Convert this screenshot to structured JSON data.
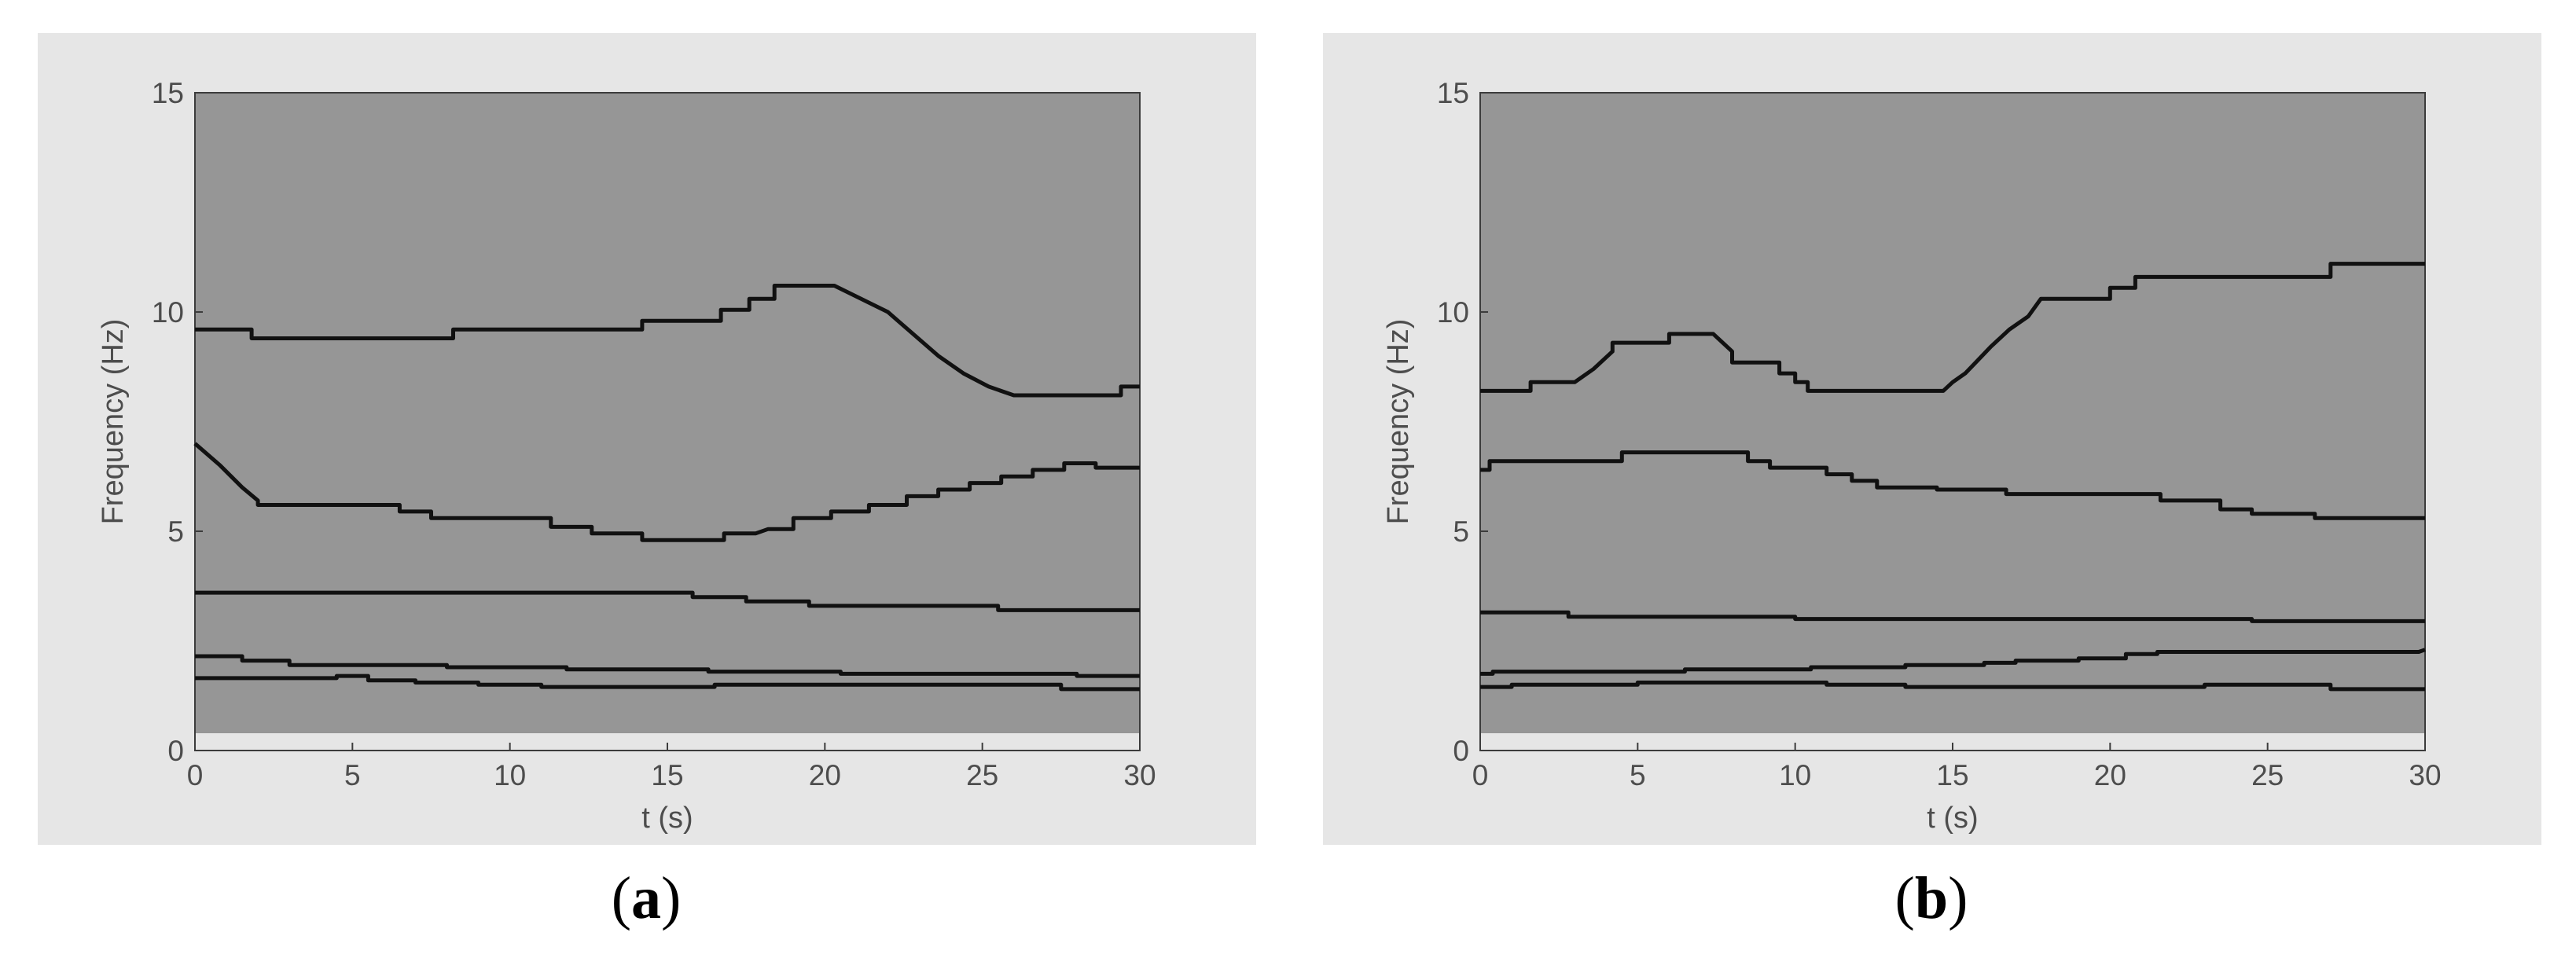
{
  "chart_data": [
    {
      "type": "line",
      "panel_label": "a",
      "xlabel": "t (s)",
      "ylabel": "Frequency (Hz)",
      "xlim": [
        0,
        30
      ],
      "ylim": [
        0,
        15
      ],
      "xticks": [
        0,
        5,
        10,
        15,
        20,
        25,
        30
      ],
      "yticks": [
        0,
        5,
        10,
        15
      ],
      "plot_background": "#969696",
      "line_color": "#111111",
      "series": [
        {
          "x": [
            0,
            1.8,
            1.8,
            8.2,
            8.2,
            14.2,
            14.2,
            16.7,
            16.7,
            17.6,
            17.6,
            18.4,
            18.4,
            20.3,
            20.3,
            22.0,
            22.8,
            23.6,
            24.4,
            25.2,
            26.0,
            26.8,
            26.8,
            29.4,
            29.4,
            30
          ],
          "y": [
            9.6,
            9.6,
            9.4,
            9.4,
            9.6,
            9.6,
            9.8,
            9.8,
            10.05,
            10.05,
            10.3,
            10.3,
            10.6,
            10.6,
            10.6,
            10.0,
            9.5,
            9.0,
            8.6,
            8.3,
            8.1,
            8.1,
            8.1,
            8.1,
            8.3,
            8.3
          ]
        },
        {
          "x": [
            0,
            0.8,
            1.5,
            2.0,
            2.0,
            6.5,
            6.5,
            7.5,
            7.5,
            11.3,
            11.3,
            12.6,
            12.6,
            14.2,
            14.2,
            16.8,
            16.8,
            17.8,
            18.2,
            19.0,
            19.0,
            20.2,
            20.2,
            21.4,
            21.4,
            22.6,
            22.6,
            23.6,
            23.6,
            24.6,
            24.6,
            25.6,
            25.6,
            26.6,
            26.6,
            27.6,
            27.6,
            28.6,
            28.6,
            30
          ],
          "y": [
            7.0,
            6.5,
            6.0,
            5.7,
            5.6,
            5.6,
            5.45,
            5.45,
            5.3,
            5.3,
            5.1,
            5.1,
            4.95,
            4.95,
            4.8,
            4.8,
            4.95,
            4.95,
            5.05,
            5.05,
            5.3,
            5.3,
            5.45,
            5.45,
            5.6,
            5.6,
            5.8,
            5.8,
            5.95,
            5.95,
            6.1,
            6.1,
            6.25,
            6.25,
            6.4,
            6.4,
            6.55,
            6.55,
            6.45,
            6.45
          ]
        },
        {
          "x": [
            0,
            15.8,
            15.8,
            17.5,
            17.5,
            19.5,
            19.5,
            25.5,
            25.5,
            30
          ],
          "y": [
            3.6,
            3.6,
            3.5,
            3.5,
            3.4,
            3.4,
            3.3,
            3.3,
            3.2,
            3.2
          ]
        },
        {
          "x": [
            0,
            1.5,
            1.5,
            3.0,
            3.0,
            8.0,
            8.0,
            11.8,
            11.8,
            16.3,
            16.3,
            20.5,
            20.5,
            28.0,
            28.0,
            30
          ],
          "y": [
            2.15,
            2.15,
            2.05,
            2.05,
            1.95,
            1.95,
            1.9,
            1.9,
            1.85,
            1.85,
            1.8,
            1.8,
            1.75,
            1.75,
            1.7,
            1.7
          ]
        },
        {
          "x": [
            0,
            4.5,
            4.5,
            5.5,
            5.5,
            7.0,
            7.0,
            9.0,
            9.0,
            11.0,
            11.0,
            16.5,
            16.5,
            27.5,
            27.5,
            30
          ],
          "y": [
            1.65,
            1.65,
            1.7,
            1.7,
            1.6,
            1.6,
            1.55,
            1.55,
            1.5,
            1.5,
            1.45,
            1.45,
            1.5,
            1.5,
            1.4,
            1.4
          ]
        }
      ]
    },
    {
      "type": "line",
      "panel_label": "b",
      "xlabel": "t (s)",
      "ylabel": "Frequency (Hz)",
      "xlim": [
        0,
        30
      ],
      "ylim": [
        0,
        15
      ],
      "xticks": [
        0,
        5,
        10,
        15,
        20,
        25,
        30
      ],
      "yticks": [
        0,
        5,
        10,
        15
      ],
      "plot_background": "#969696",
      "line_color": "#111111",
      "series": [
        {
          "x": [
            0,
            1.6,
            1.6,
            3.0,
            3.6,
            4.2,
            4.2,
            6.0,
            6.0,
            7.4,
            8.0,
            8.0,
            9.5,
            9.5,
            10.0,
            10.0,
            10.4,
            10.4,
            11.0,
            11.0,
            14.7,
            15.0,
            15.4,
            15.8,
            16.2,
            16.8,
            17.4,
            17.8,
            17.8,
            20.0,
            20.0,
            20.8,
            20.8,
            21.5,
            21.5,
            27.0,
            27.0,
            30
          ],
          "y": [
            8.2,
            8.2,
            8.4,
            8.4,
            8.7,
            9.1,
            9.3,
            9.3,
            9.5,
            9.5,
            9.1,
            8.85,
            8.85,
            8.6,
            8.6,
            8.4,
            8.4,
            8.2,
            8.2,
            8.2,
            8.2,
            8.4,
            8.6,
            8.9,
            9.2,
            9.6,
            9.9,
            10.3,
            10.3,
            10.3,
            10.55,
            10.55,
            10.8,
            10.8,
            10.8,
            10.8,
            11.1,
            11.1
          ]
        },
        {
          "x": [
            0,
            0.3,
            0.3,
            4.5,
            4.5,
            8.5,
            8.5,
            9.2,
            9.2,
            11.0,
            11.0,
            11.8,
            11.8,
            12.6,
            12.6,
            14.5,
            14.5,
            16.7,
            16.7,
            21.6,
            21.6,
            23.5,
            23.5,
            24.5,
            24.5,
            26.5,
            26.5,
            30
          ],
          "y": [
            6.4,
            6.4,
            6.6,
            6.6,
            6.8,
            6.8,
            6.6,
            6.6,
            6.45,
            6.45,
            6.3,
            6.3,
            6.15,
            6.15,
            6.0,
            6.0,
            5.95,
            5.95,
            5.85,
            5.85,
            5.7,
            5.7,
            5.5,
            5.5,
            5.4,
            5.4,
            5.3,
            5.3
          ]
        },
        {
          "x": [
            0,
            2.8,
            2.8,
            10.0,
            10.0,
            24.5,
            24.5,
            30
          ],
          "y": [
            3.15,
            3.15,
            3.05,
            3.05,
            3.0,
            3.0,
            2.95,
            2.95
          ]
        },
        {
          "x": [
            0,
            0.4,
            0.4,
            6.5,
            6.5,
            10.5,
            10.5,
            13.5,
            13.5,
            16.0,
            16.0,
            17.0,
            17.0,
            19.0,
            19.0,
            20.5,
            20.5,
            21.5,
            21.5,
            24.0,
            24.0,
            29.8,
            30
          ],
          "y": [
            1.75,
            1.75,
            1.8,
            1.8,
            1.85,
            1.85,
            1.9,
            1.9,
            1.95,
            1.95,
            2.0,
            2.0,
            2.05,
            2.05,
            2.1,
            2.1,
            2.2,
            2.2,
            2.25,
            2.25,
            2.25,
            2.25,
            2.3
          ]
        },
        {
          "x": [
            0,
            1.0,
            1.0,
            5.0,
            5.0,
            11.0,
            11.0,
            13.5,
            13.5,
            17.0,
            17.0,
            23.0,
            23.0,
            27.0,
            27.0,
            30
          ],
          "y": [
            1.45,
            1.45,
            1.5,
            1.5,
            1.55,
            1.55,
            1.5,
            1.5,
            1.45,
            1.45,
            1.45,
            1.45,
            1.5,
            1.5,
            1.4,
            1.4
          ]
        }
      ]
    }
  ]
}
